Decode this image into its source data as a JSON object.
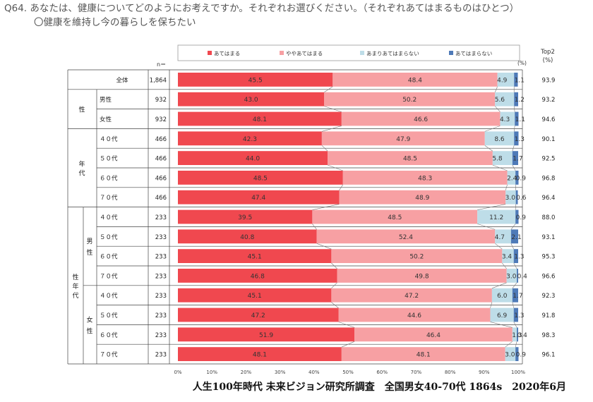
{
  "question": {
    "title": "Q64. あなたは、健康についてどのようにお考えですか。それぞれお選びください。（それぞれあてはまるものはひとつ）",
    "subtitle": "〇健康を維持し今の暮らしを保ちたい"
  },
  "footer": "人生100年時代 未来ビジョン研究所調査　全国男女40-70代 1864s　2020年6月",
  "colors": {
    "s1": "#f0484f",
    "s2": "#f7a0a3",
    "s3": "#bedde8",
    "s4": "#4e7ab8"
  },
  "chart_data": {
    "type": "bar",
    "orientation": "horizontal",
    "stacked": true,
    "unit_label": "(%)",
    "n_label": "n＝",
    "top2_label": [
      "Top2",
      "(%)"
    ],
    "legend_position": "top",
    "series": [
      {
        "name": "あてはまる",
        "values": [
          45.5,
          43.0,
          48.1,
          42.3,
          44.0,
          48.5,
          47.4,
          39.5,
          40.8,
          45.1,
          46.8,
          45.1,
          47.2,
          51.9,
          48.1
        ]
      },
      {
        "name": "ややあてはまる",
        "values": [
          48.4,
          50.2,
          46.6,
          47.9,
          48.5,
          48.3,
          48.9,
          48.5,
          52.4,
          50.2,
          49.8,
          47.2,
          44.6,
          46.4,
          48.1
        ]
      },
      {
        "name": "あまりあてはまらない",
        "values": [
          4.9,
          5.6,
          4.3,
          8.6,
          5.8,
          2.4,
          3.0,
          11.2,
          4.7,
          3.4,
          3.0,
          6.0,
          6.9,
          1.3,
          3.0
        ]
      },
      {
        "name": "あてはまらない",
        "values": [
          1.1,
          1.2,
          1.1,
          1.3,
          1.7,
          0.9,
          0.6,
          0.9,
          2.1,
          1.3,
          0.4,
          1.7,
          1.3,
          0.4,
          0.9
        ]
      }
    ],
    "rows": [
      {
        "label": "全体",
        "n": "1,864",
        "top2": "93.9"
      },
      {
        "label": "男性",
        "n": "932",
        "top2": "93.2"
      },
      {
        "label": "女性",
        "n": "932",
        "top2": "94.6"
      },
      {
        "label": "４０代",
        "n": "466",
        "top2": "90.1"
      },
      {
        "label": "５０代",
        "n": "466",
        "top2": "92.5"
      },
      {
        "label": "６０代",
        "n": "466",
        "top2": "96.8"
      },
      {
        "label": "７０代",
        "n": "466",
        "top2": "96.4"
      },
      {
        "label": "４０代",
        "n": "233",
        "top2": "88.0"
      },
      {
        "label": "５０代",
        "n": "233",
        "top2": "93.1"
      },
      {
        "label": "６０代",
        "n": "233",
        "top2": "95.3"
      },
      {
        "label": "７０代",
        "n": "233",
        "top2": "96.6"
      },
      {
        "label": "４０代",
        "n": "233",
        "top2": "92.3"
      },
      {
        "label": "５０代",
        "n": "233",
        "top2": "91.8"
      },
      {
        "label": "６０代",
        "n": "233",
        "top2": "98.3"
      },
      {
        "label": "７０代",
        "n": "233",
        "top2": "96.1"
      }
    ],
    "groups": [
      {
        "label": "性",
        "from": 1,
        "to": 2
      },
      {
        "label": "年代",
        "from": 3,
        "to": 6
      },
      {
        "label": "性年代",
        "from": 7,
        "to": 14
      }
    ],
    "subgroups": [
      {
        "label": "男性",
        "from": 7,
        "to": 10
      },
      {
        "label": "女性",
        "from": 11,
        "to": 14
      }
    ],
    "x_ticks": [
      "0%",
      "10%",
      "20%",
      "30%",
      "40%",
      "50%",
      "60%",
      "70%",
      "80%",
      "90%",
      "100%"
    ],
    "xlim": [
      0,
      100
    ]
  }
}
